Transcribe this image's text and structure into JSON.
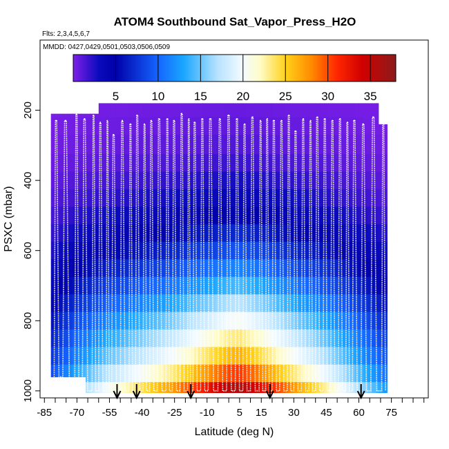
{
  "chart_data": {
    "type": "heatmap",
    "title": "ATOM4 Southbound Sat_Vapor_Press_H2O",
    "flights_note": "Flts: 2,3,4,5,6,7",
    "dates_note": "MMDD: 0427,0429,0501,0503,0506,0509",
    "xlabel": "Latitude (deg N)",
    "ylabel": "PSXC (mbar)",
    "xlim": [
      -87,
      92
    ],
    "ylim": [
      1020,
      0
    ],
    "x_ticks": [
      -85,
      -70,
      -55,
      -40,
      -25,
      -10,
      5,
      15,
      30,
      45,
      60,
      75
    ],
    "x_minor_ticks": [
      -85,
      -80,
      -75,
      -70,
      -65,
      -60,
      -55,
      -50,
      -45,
      -40,
      -35,
      -30,
      -25,
      -20,
      -15,
      -10,
      -5,
      0,
      5,
      10,
      15,
      20,
      25,
      30,
      35,
      40,
      45,
      50,
      55,
      60,
      65,
      70,
      75,
      80,
      85,
      90
    ],
    "y_ticks": [
      200,
      400,
      600,
      800,
      1000
    ],
    "colorbar": {
      "min": 0,
      "max": 38,
      "ticks": [
        5,
        10,
        15,
        20,
        25,
        30,
        35
      ],
      "stops": [
        "#7f1fe8",
        "#0b0bbd",
        "#0000aa",
        "#1565ff",
        "#1aa6ff",
        "#b7e3ff",
        "#f4fbff",
        "#fffcc8",
        "#ffd21a",
        "#ff8c00",
        "#ff2800",
        "#d10000",
        "#8c1b1b"
      ],
      "stop_values": [
        0,
        3,
        5,
        10,
        13,
        17,
        20,
        22,
        25,
        28,
        31,
        34,
        38
      ]
    },
    "pressure_bins": [
      200,
      240,
      300,
      350,
      400,
      450,
      500,
      550,
      600,
      650,
      700,
      750,
      800,
      850,
      900,
      950,
      1000
    ],
    "color_values_by_pressure": [
      0.5,
      0.7,
      1.0,
      1.5,
      2.3,
      3.2,
      4.4,
      5.8,
      7.5,
      9.5,
      11.8,
      14.3,
      17.0,
      19.5,
      22.0,
      25.5,
      30.0
    ],
    "latitude_profile_factor": [
      {
        "lat": -82,
        "factor": 0.33
      },
      {
        "lat": -70,
        "factor": 0.52
      },
      {
        "lat": -55,
        "factor": 0.68
      },
      {
        "lat": -40,
        "factor": 0.8
      },
      {
        "lat": -25,
        "factor": 0.92
      },
      {
        "lat": -10,
        "factor": 1.08
      },
      {
        "lat": 0,
        "factor": 1.18
      },
      {
        "lat": 5,
        "factor": 1.2
      },
      {
        "lat": 15,
        "factor": 1.1
      },
      {
        "lat": 30,
        "factor": 0.92
      },
      {
        "lat": 45,
        "factor": 0.76
      },
      {
        "lat": 60,
        "factor": 0.56
      },
      {
        "lat": 72,
        "factor": 0.42
      }
    ],
    "data_coverage": [
      {
        "lat_from": -82,
        "lat_to": -66,
        "p_top": 210,
        "p_bottom": 960
      },
      {
        "lat_from": -66,
        "lat_to": -60,
        "p_top": 210,
        "p_bottom": 1005
      },
      {
        "lat_from": -60,
        "lat_to": 69,
        "p_top": 180,
        "p_bottom": 1005
      },
      {
        "lat_from": 69,
        "lat_to": 73,
        "p_top": 240,
        "p_bottom": 1005
      }
    ],
    "flight_path_latitudes": [
      -80.5,
      -76.5,
      -71,
      -67.5,
      -63,
      -60,
      -56.5,
      -54,
      -50,
      -46,
      -43,
      -39.5,
      -36.5,
      -33,
      -29,
      -26,
      -22.5,
      -19,
      -16.5,
      -13,
      -9.5,
      -5,
      -1,
      3,
      6.5,
      10,
      14,
      17,
      20,
      23.5,
      27,
      30,
      33.5,
      37,
      40,
      43.5,
      47,
      50.5,
      54,
      57,
      61,
      65.5,
      70.5
    ],
    "profile_bottoms": [
      960,
      960,
      1000,
      1000,
      1000,
      1000,
      1000,
      1000,
      1000,
      1000,
      1000,
      1000,
      1000,
      1000,
      1000,
      1000,
      1000,
      1000,
      1000,
      1000,
      1000,
      1000,
      1000,
      1000,
      1000,
      1000,
      1000,
      1000,
      1000,
      1000,
      1000,
      1000,
      1000,
      1000,
      1000,
      1000,
      1000,
      1000,
      1000,
      1000,
      1000,
      1000,
      1000
    ],
    "profile_tops": [
      230,
      230,
      210,
      225,
      215,
      235,
      230,
      270,
      230,
      240,
      215,
      240,
      230,
      225,
      225,
      230,
      210,
      225,
      235,
      225,
      225,
      225,
      215,
      225,
      240,
      220,
      230,
      225,
      230,
      230,
      215,
      260,
      225,
      230,
      220,
      225,
      230,
      225,
      235,
      230,
      240,
      220,
      210
    ],
    "arrows_latitudes": [
      -51.5,
      -42.5,
      -17.5,
      19,
      61
    ]
  }
}
